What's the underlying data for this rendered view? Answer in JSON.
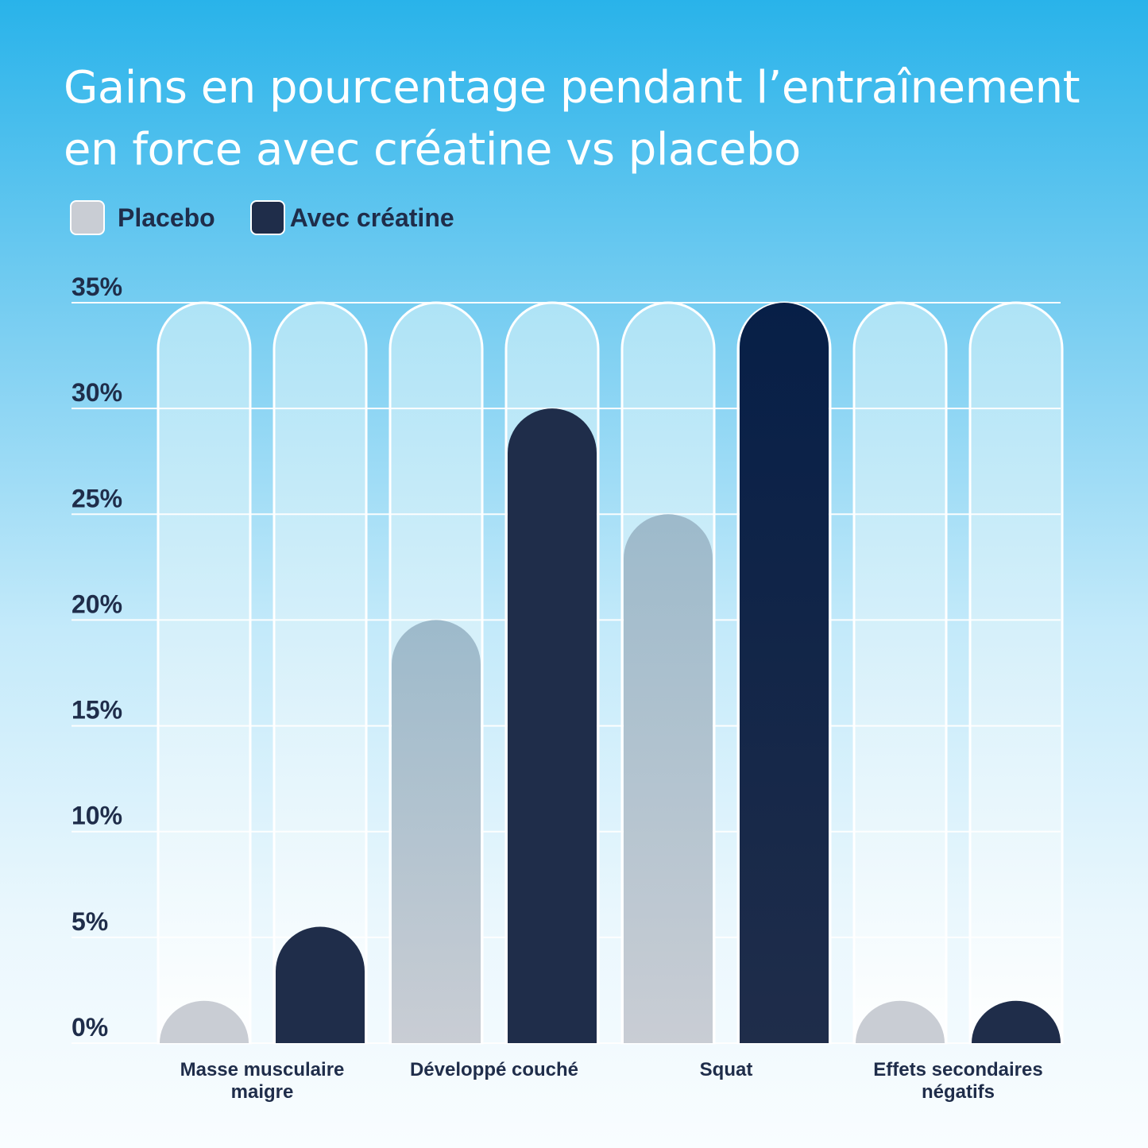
{
  "chart_data": {
    "type": "bar",
    "title_lines": [
      "Gains en pourcentage pendant l’entraînement",
      "en force avec créatine vs placebo"
    ],
    "categories": [
      {
        "label_lines": [
          "Masse musculaire",
          "maigre"
        ]
      },
      {
        "label_lines": [
          "Développé couché"
        ]
      },
      {
        "label_lines": [
          "Squat"
        ]
      },
      {
        "label_lines": [
          "Effets secondaires",
          "négatifs"
        ]
      }
    ],
    "series": [
      {
        "name": "Placebo",
        "color": "#c9cdd4",
        "values": [
          2,
          20,
          25,
          2
        ]
      },
      {
        "name": "Avec créatine",
        "color": "#1f2d4a",
        "values": [
          5.5,
          30,
          35,
          2
        ]
      }
    ],
    "y_ticks": [
      "0%",
      "5%",
      "10%",
      "15%",
      "20%",
      "25%",
      "30%",
      "35%"
    ],
    "ylim": [
      0,
      35
    ],
    "grid": true,
    "legend_position": "top-left"
  }
}
